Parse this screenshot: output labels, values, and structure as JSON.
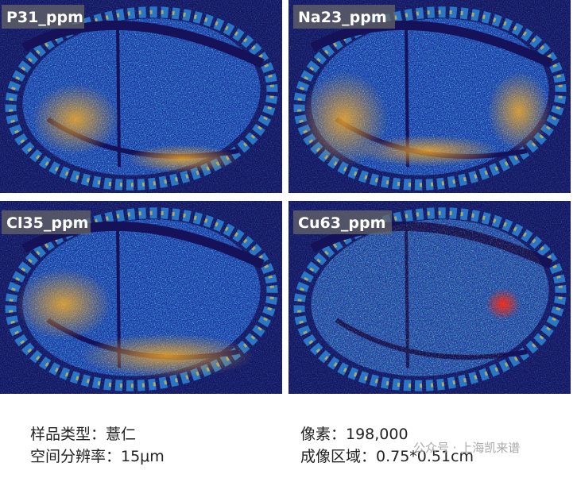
{
  "panels": [
    {
      "label": "P31_ppm"
    },
    {
      "label": "Na23_ppm"
    },
    {
      "label": "Cl35_ppm"
    },
    {
      "label": "Cu63_ppm"
    }
  ],
  "caption": {
    "left": [
      "样品类型：薏仁",
      "空间分辨率：15μm"
    ],
    "right": [
      "像素：198,000",
      "成像区域：0.75*0.51cm"
    ]
  },
  "watermark": "公众号 · 上海凯来谱"
}
